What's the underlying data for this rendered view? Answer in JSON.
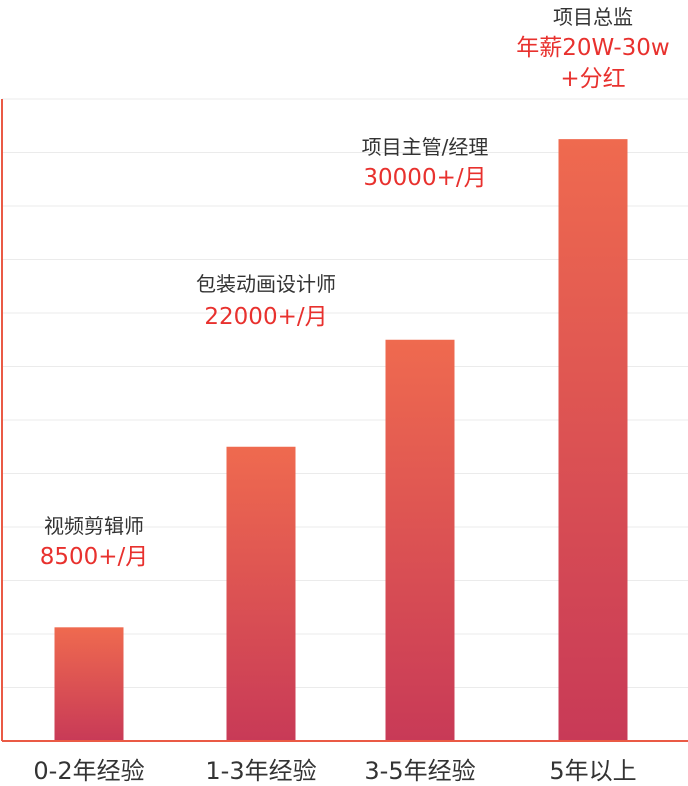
{
  "colors": {
    "bar_top": "#ef6a4f",
    "bar_bottom": "#c83a57",
    "axis": "#ea5a45",
    "grid": "#ebebeb",
    "salary_text": "#e8312e",
    "role_text": "#333333"
  },
  "chart_data": {
    "type": "bar",
    "categories": [
      "0-2年经验",
      "1-3年经验",
      "3-5年经验",
      "5年以上"
    ],
    "values": [
      8500,
      22000,
      30000,
      45000
    ],
    "ylim": [
      0,
      48000
    ],
    "grid": true,
    "roles": [
      "视频剪辑师",
      "包装动画设计师",
      "项目主管/经理",
      "项目总监"
    ],
    "salaries": [
      "8500+/月",
      "22000+/月",
      "30000+/月",
      "年薪20W-30w",
      "+分红"
    ]
  }
}
